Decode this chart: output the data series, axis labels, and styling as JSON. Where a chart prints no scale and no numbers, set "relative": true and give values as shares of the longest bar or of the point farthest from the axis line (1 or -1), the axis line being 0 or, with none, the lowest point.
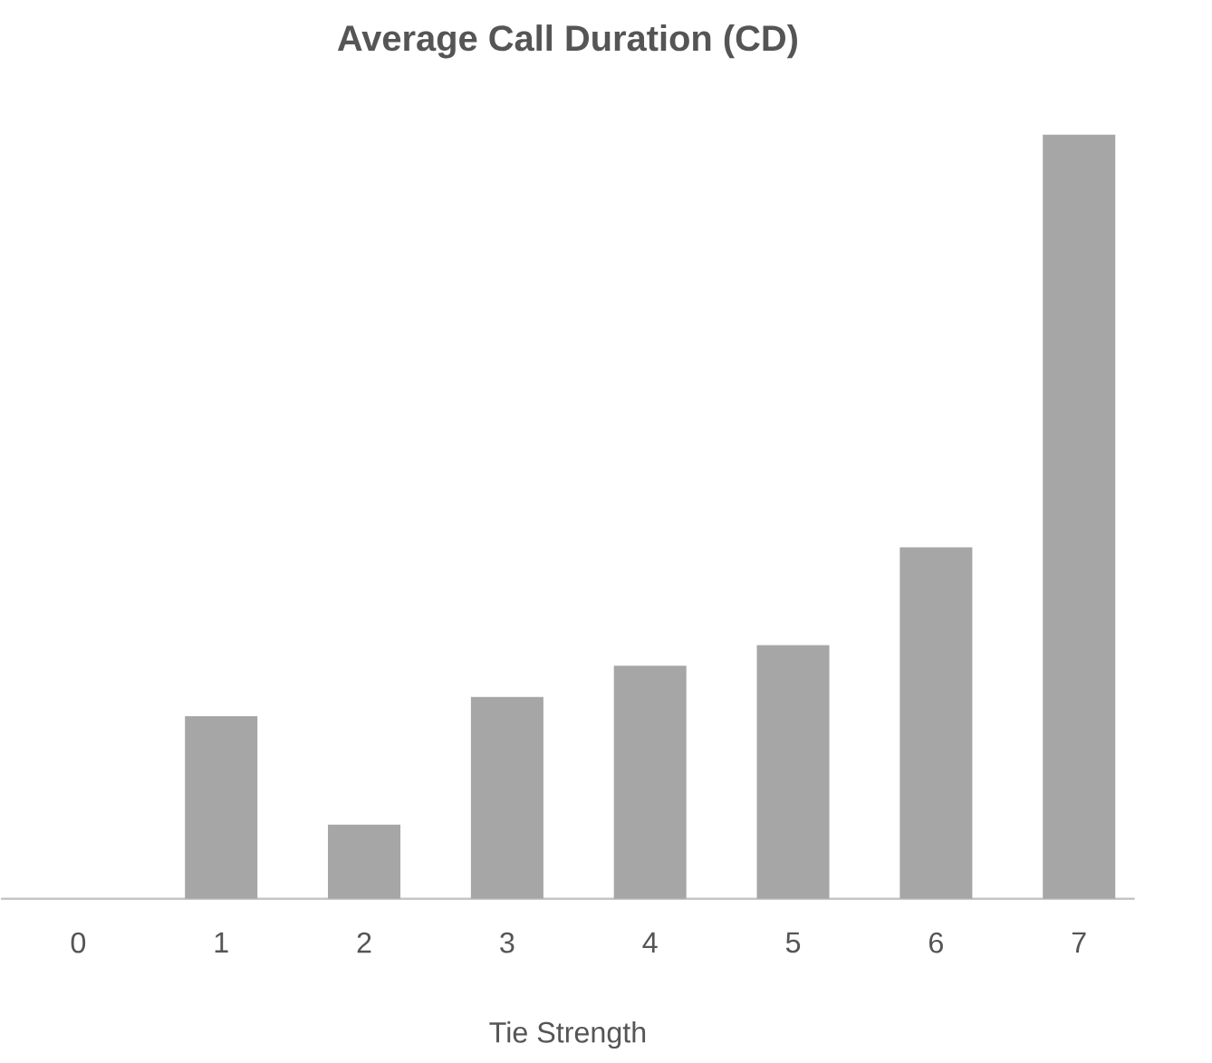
{
  "chart_data": {
    "type": "bar",
    "title": "Average Call Duration (CD)",
    "xlabel": "Tie Strength",
    "categories": [
      "0",
      "1",
      "2",
      "3",
      "4",
      "5",
      "6",
      "7"
    ],
    "values": [
      0,
      0.239,
      0.097,
      0.264,
      0.305,
      0.332,
      0.46,
      1
    ],
    "color": "#a6a6a6",
    "relative": true
  }
}
